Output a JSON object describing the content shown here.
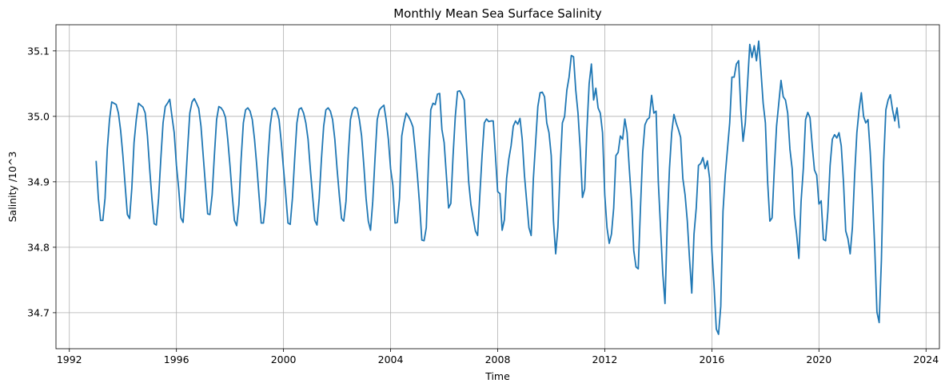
{
  "chart_data": {
    "type": "line",
    "title": "Monthly Mean Sea Surface Salinity",
    "xlabel": "Time",
    "ylabel": "Salinity /10^3",
    "xlim": [
      1991.5,
      2024.5
    ],
    "ylim": [
      34.645,
      35.14
    ],
    "x_ticks": [
      1992,
      1996,
      2000,
      2004,
      2008,
      2012,
      2016,
      2020,
      2024
    ],
    "y_ticks": [
      34.7,
      34.8,
      34.9,
      35.0,
      35.1
    ],
    "y_tick_labels": [
      "34.7",
      "34.8",
      "34.9",
      "35.0",
      "35.1"
    ],
    "grid": true,
    "colors": {
      "series": "#1f77b4"
    },
    "series": [
      {
        "x_start": 1993.0,
        "x_step_months": 1,
        "values": [
          34.932,
          34.875,
          34.841,
          34.841,
          34.875,
          34.95,
          34.995,
          35.022,
          35.02,
          35.018,
          35.005,
          34.978,
          34.94,
          34.895,
          34.85,
          34.844,
          34.89,
          34.96,
          34.995,
          35.02,
          35.017,
          35.014,
          35.005,
          34.97,
          34.92,
          34.875,
          34.836,
          34.834,
          34.875,
          34.935,
          34.99,
          35.015,
          35.02,
          35.026,
          35.0,
          34.975,
          34.925,
          34.89,
          34.845,
          34.838,
          34.89,
          34.95,
          35.005,
          35.022,
          35.027,
          35.02,
          35.012,
          34.985,
          34.94,
          34.895,
          34.851,
          34.85,
          34.88,
          34.94,
          34.995,
          35.015,
          35.013,
          35.008,
          34.998,
          34.965,
          34.925,
          34.88,
          34.841,
          34.833,
          34.865,
          34.935,
          34.99,
          35.01,
          35.013,
          35.008,
          34.995,
          34.965,
          34.925,
          34.88,
          34.837,
          34.837,
          34.87,
          34.935,
          34.985,
          35.01,
          35.013,
          35.008,
          34.995,
          34.96,
          34.92,
          34.88,
          34.837,
          34.835,
          34.875,
          34.935,
          34.99,
          35.011,
          35.013,
          35.005,
          34.99,
          34.965,
          34.92,
          34.88,
          34.841,
          34.834,
          34.875,
          34.935,
          34.985,
          35.01,
          35.013,
          35.008,
          34.995,
          34.965,
          34.92,
          34.88,
          34.844,
          34.84,
          34.87,
          34.94,
          34.995,
          35.01,
          35.014,
          35.012,
          34.995,
          34.97,
          34.925,
          34.875,
          34.84,
          34.826,
          34.87,
          34.935,
          34.995,
          35.01,
          35.014,
          35.017,
          34.995,
          34.965,
          34.92,
          34.895,
          34.837,
          34.838,
          34.875,
          34.97,
          34.99,
          35.005,
          35.0,
          34.993,
          34.984,
          34.95,
          34.91,
          34.865,
          34.811,
          34.81,
          34.83,
          34.93,
          35.01,
          35.02,
          35.018,
          35.034,
          35.035,
          34.98,
          34.96,
          34.91,
          34.86,
          34.867,
          34.94,
          35.0,
          35.038,
          35.039,
          35.033,
          35.025,
          34.96,
          34.9,
          34.865,
          34.845,
          34.825,
          34.818,
          34.88,
          34.94,
          34.99,
          34.996,
          34.992,
          34.993,
          34.993,
          34.94,
          34.885,
          34.882,
          34.826,
          34.842,
          34.905,
          34.935,
          34.955,
          34.985,
          34.993,
          34.988,
          34.997,
          34.965,
          34.91,
          34.87,
          34.83,
          34.818,
          34.905,
          34.96,
          35.015,
          35.036,
          35.037,
          35.03,
          34.99,
          34.975,
          34.94,
          34.84,
          34.79,
          34.83,
          34.92,
          34.99,
          35.0,
          35.04,
          35.06,
          35.093,
          35.091,
          35.04,
          35.005,
          34.95,
          34.876,
          34.889,
          34.98,
          35.05,
          35.08,
          35.025,
          35.043,
          35.013,
          35.005,
          34.975,
          34.88,
          34.83,
          34.806,
          34.82,
          34.86,
          34.94,
          34.945,
          34.97,
          34.965,
          34.996,
          34.975,
          34.92,
          34.87,
          34.795,
          34.77,
          34.767,
          34.86,
          34.945,
          34.987,
          34.995,
          34.998,
          35.032,
          35.005,
          35.008,
          34.9,
          34.83,
          34.76,
          34.714,
          34.835,
          34.92,
          34.975,
          35.003,
          34.99,
          34.98,
          34.968,
          34.905,
          34.88,
          34.84,
          34.782,
          34.73,
          34.82,
          34.86,
          34.925,
          34.928,
          34.937,
          34.92,
          34.932,
          34.905,
          34.795,
          34.74,
          34.675,
          34.667,
          34.71,
          34.855,
          34.91,
          34.95,
          34.99,
          35.06,
          35.06,
          35.08,
          35.085,
          35.01,
          34.962,
          34.99,
          35.05,
          35.11,
          35.09,
          35.108,
          35.085,
          35.115,
          35.07,
          35.02,
          34.99,
          34.9,
          34.84,
          34.845,
          34.92,
          34.985,
          35.02,
          35.055,
          35.03,
          35.025,
          35.005,
          34.95,
          34.92,
          34.85,
          34.82,
          34.783,
          34.87,
          34.92,
          34.995,
          35.006,
          34.998,
          34.955,
          34.918,
          34.91,
          34.866,
          34.871,
          34.812,
          34.81,
          34.855,
          34.925,
          34.965,
          34.972,
          34.967,
          34.975,
          34.955,
          34.9,
          34.825,
          34.813,
          34.79,
          34.83,
          34.91,
          34.975,
          35.01,
          35.036,
          35.0,
          34.99,
          34.995,
          34.945,
          34.88,
          34.8,
          34.701,
          34.685,
          34.78,
          34.93,
          35.01,
          35.025,
          35.033,
          35.01,
          34.993,
          35.013,
          34.982
        ]
      }
    ]
  }
}
